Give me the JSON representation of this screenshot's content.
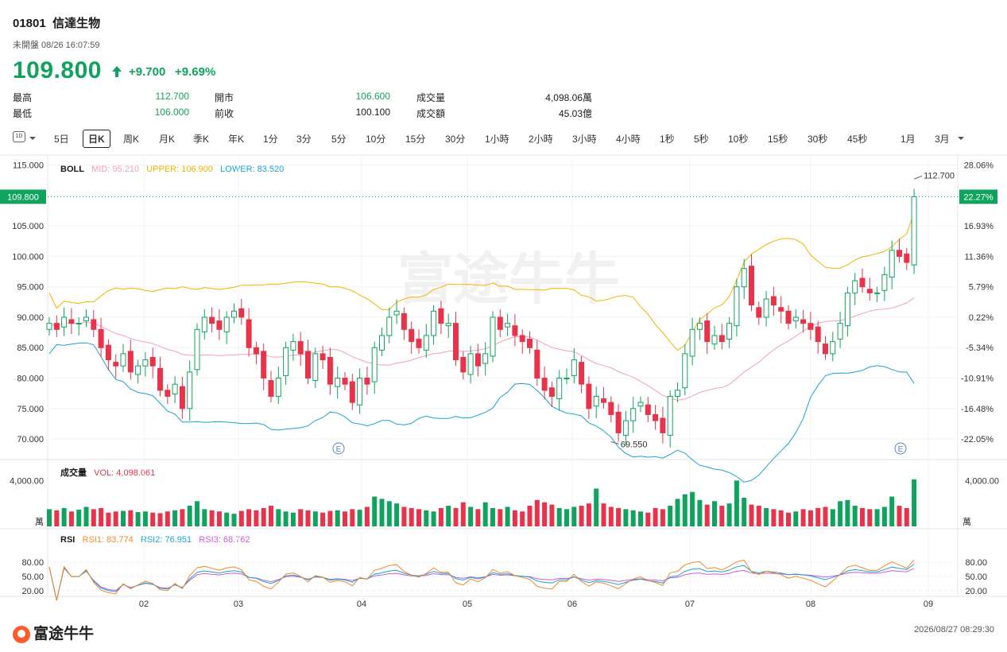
{
  "header": {
    "code": "01801",
    "name": "信達生物",
    "status": "未開盤 08/26 16:07:59",
    "price": "109.800",
    "change": "+9.700",
    "change_pct": "+9.69%",
    "arrow_icon": "up-arrow-icon",
    "stats": [
      {
        "label": "最高",
        "value": "112.700",
        "color": "#10a35d"
      },
      {
        "label": "最低",
        "value": "106.000",
        "color": "#10a35d"
      },
      {
        "label": "開市",
        "value": "106.600",
        "color": "#10a35d"
      },
      {
        "label": "前收",
        "value": "100.100",
        "color": "#222222"
      },
      {
        "label": "成交量",
        "value": "4,098.06萬",
        "color": "#222222"
      },
      {
        "label": "成交額",
        "value": "45.03億",
        "color": "#222222"
      }
    ]
  },
  "toolbar": {
    "period_icon": "1D",
    "items": [
      "5日",
      "日K",
      "周K",
      "月K",
      "季K",
      "年K",
      "1分",
      "3分",
      "5分",
      "10分",
      "15分",
      "30分",
      "1小時",
      "2小時",
      "3小時",
      "4小時",
      "1秒",
      "5秒",
      "10秒",
      "15秒",
      "30秒",
      "45秒",
      "1月",
      "3月"
    ],
    "active": "日K"
  },
  "boll": {
    "label": "BOLL",
    "mid": "MID: 95.210",
    "upper": "UPPER: 106.900",
    "lower": "LOWER: 83.520"
  },
  "vol": {
    "label": "成交量",
    "value": "VOL: 4,098.061",
    "unit": "萬"
  },
  "rsi": {
    "label": "RSI",
    "rsi1": "RSI1: 83.774",
    "rsi2": "RSI2: 76.951",
    "rsi3": "RSI3: 68.762"
  },
  "price_tag": "109.800",
  "pct_tag": "22.27%",
  "high_mark": "112.700",
  "low_mark": "69.550",
  "earnings_marker": "E",
  "footer": {
    "logo": "富途牛牛",
    "watermark": "富途牛牛",
    "timestamp": "2026/08/27 08:29:30"
  },
  "colors": {
    "up": "#10a35d",
    "down": "#e8334a",
    "mid": "#f4a0b8",
    "upper": "#f5b400",
    "lower": "#1aa3d6",
    "rsi1": "#f08a24",
    "rsi2": "#1aa3d6",
    "rsi3": "#c85fd6"
  },
  "chart_data": {
    "type": "candlestick",
    "y_ticks": [
      "115.000",
      "110.000",
      "105.000",
      "100.000",
      "95.000",
      "90.000",
      "85.000",
      "80.000",
      "75.000",
      "70.000"
    ],
    "pct_ticks": [
      "28.06%",
      "22.27%",
      "16.93%",
      "11.36%",
      "5.79%",
      "0.22%",
      "-5.34%",
      "-10.91%",
      "-16.48%",
      "-22.05%"
    ],
    "vol_ticks": [
      "4,000.00"
    ],
    "rsi_ticks": [
      "80.00",
      "50.00",
      "20.00"
    ],
    "x_ticks": [
      "02",
      "03",
      "04",
      "05",
      "06",
      "07",
      "08",
      "09"
    ],
    "ylim": [
      67,
      116
    ],
    "closes": [
      89,
      88,
      90,
      89,
      89,
      90,
      88,
      85,
      83,
      82,
      84,
      81,
      82,
      83,
      82,
      78,
      77,
      79,
      75,
      81,
      88,
      90,
      89,
      88,
      90,
      91,
      90,
      85,
      84,
      80,
      77,
      80,
      85,
      86,
      84,
      80,
      84,
      83,
      79,
      80,
      79,
      76,
      80,
      79,
      85,
      87,
      90,
      91,
      88,
      86,
      85,
      87,
      91,
      89,
      89,
      83,
      81,
      84,
      82,
      84,
      90,
      88,
      89,
      87,
      86,
      85,
      80,
      78,
      77,
      80,
      80,
      83,
      79,
      75,
      77,
      76,
      74,
      71,
      73,
      75,
      76,
      74,
      73,
      71,
      77,
      78,
      84,
      88,
      89,
      86,
      87,
      86,
      89,
      95,
      98,
      92,
      90,
      93,
      92,
      91,
      89,
      90,
      89,
      88,
      86,
      84,
      86,
      89,
      94,
      96,
      95,
      94,
      94,
      97,
      101,
      100,
      99,
      109.8
    ],
    "volumes": [
      1500,
      1400,
      1600,
      1300,
      1450,
      1700,
      1500,
      1600,
      1200,
      1300,
      1350,
      1400,
      1250,
      1300,
      1200,
      1150,
      1300,
      1400,
      1500,
      1800,
      2200,
      1500,
      1400,
      1300,
      1200,
      1100,
      1350,
      1500,
      1400,
      1600,
      1800,
      1500,
      1300,
      1200,
      1500,
      1400,
      1300,
      1200,
      1350,
      1400,
      1300,
      1500,
      1450,
      1700,
      2600,
      2400,
      2200,
      2000,
      1700,
      1600,
      1500,
      1400,
      1300,
      1600,
      1800,
      1600,
      2100,
      1700,
      1500,
      2100,
      1600,
      1500,
      1700,
      1400,
      1300,
      1800,
      2300,
      2100,
      1900,
      1600,
      1500,
      1700,
      1800,
      2000,
      3300,
      2000,
      1700,
      1600,
      1500,
      1400,
      1300,
      1200,
      1600,
      1500,
      1800,
      2400,
      2800,
      3000,
      2300,
      1900,
      2200,
      1800,
      2000,
      4000,
      2500,
      1900,
      1800,
      1600,
      1500,
      1400,
      1200,
      1300,
      1500,
      1400,
      1600,
      1700,
      1500,
      2200,
      2300,
      1800,
      1600,
      1500,
      1500,
      1700,
      2600,
      1800,
      1600,
      4098
    ]
  }
}
